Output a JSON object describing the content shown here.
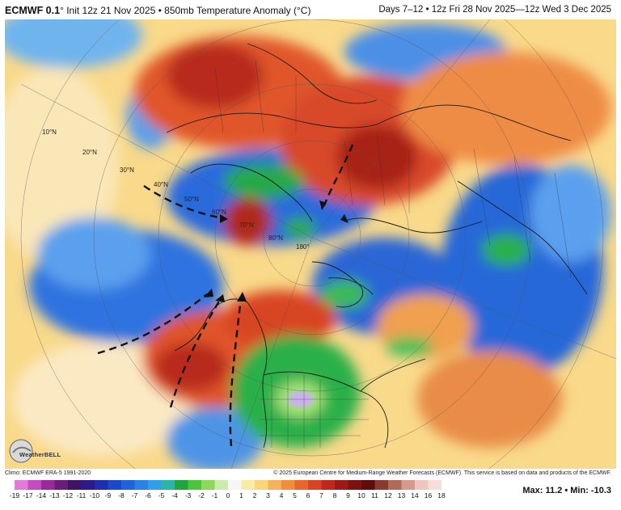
{
  "header": {
    "model": "ECMWF 0.1",
    "title_rest": "° Init 12z 21 Nov 2025 • 850mb Temperature Anomaly (°C)",
    "valid": "Days 7–12 • 12z Fri 28 Nov 2025—12z Wed 3 Dec 2025"
  },
  "map": {
    "lat_labels": [
      "10°N",
      "20°N",
      "30°N",
      "40°N",
      "50°N",
      "60°N",
      "70°N",
      "80°N",
      "180°"
    ],
    "logo_text": "WeatherBELL"
  },
  "footer": {
    "climo": "Climo: ECMWF ERA-5 1991-2020",
    "copyright": "© 2025 European Centre for Medium-Range Weather Forecasts (ECMWF). This service is based on data and products of the ECMWF."
  },
  "colorbar": {
    "labels": [
      "-19",
      "-17",
      "-14",
      "-13",
      "-12",
      "-11",
      "-10",
      "-9",
      "-8",
      "-7",
      "-6",
      "-5",
      "-4",
      "-3",
      "-2",
      "-1",
      "0",
      "1",
      "2",
      "3",
      "4",
      "5",
      "6",
      "7",
      "8",
      "9",
      "10",
      "11",
      "12",
      "13",
      "14",
      "16",
      "18"
    ],
    "colors": [
      "#e37ad8",
      "#c54cc0",
      "#9a2a9a",
      "#6a1c7a",
      "#3d1466",
      "#2a1a8c",
      "#1b2fb0",
      "#1a49cc",
      "#1f63dc",
      "#2a82e6",
      "#2ea0ea",
      "#27b6a8",
      "#1fa63f",
      "#4cc43b",
      "#8bd85a",
      "#c9ecaa",
      "#f6f6f6",
      "#fbe9a6",
      "#f9d57a",
      "#f6b25a",
      "#f08e3c",
      "#e8672c",
      "#d84424",
      "#c0281e",
      "#9f1a16",
      "#7d1210",
      "#5e0d0c",
      "#8a3a2f",
      "#b36a5a",
      "#d59a8e",
      "#efc6bf",
      "#f5ddd9"
    ]
  },
  "stats": {
    "max_label": "Max:",
    "max_value": "11.2",
    "sep": "•",
    "min_label": "Min:",
    "min_value": "-10.3"
  }
}
